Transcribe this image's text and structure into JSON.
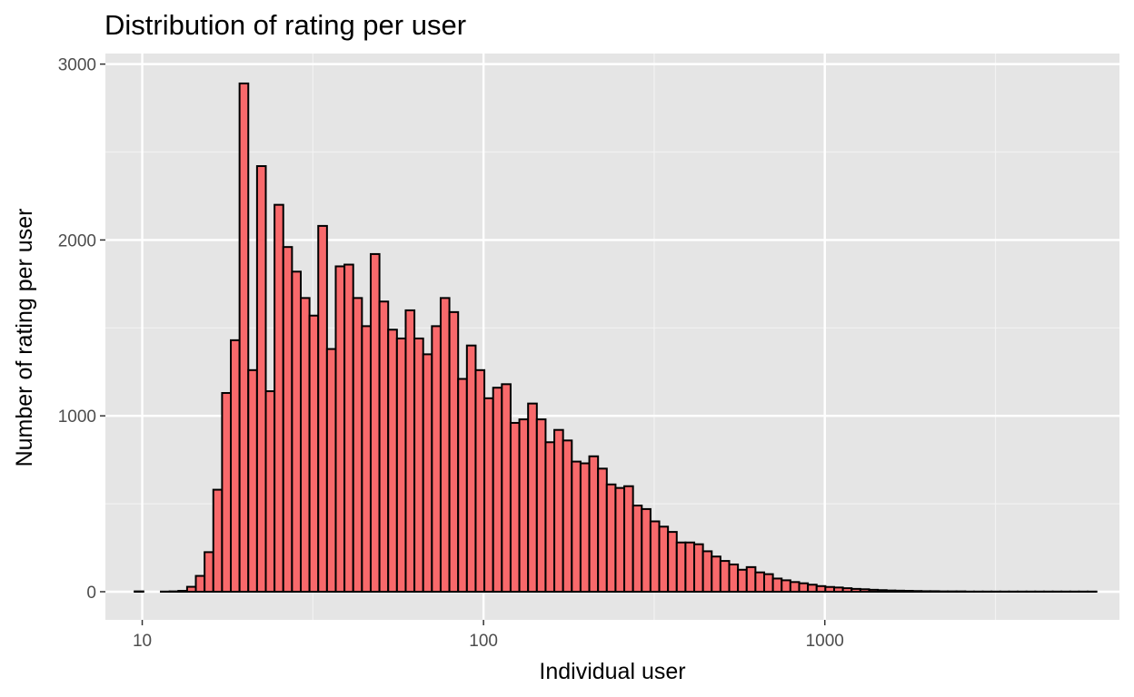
{
  "chart_data": {
    "type": "bar",
    "title": "Distribution of rating per user",
    "xlabel": "Individual user",
    "ylabel": "Number of rating per user",
    "x_scale": "log10",
    "xlim": [
      7.8,
      7300
    ],
    "ylim": [
      -160,
      3060
    ],
    "x_ticks": [
      {
        "value": 10,
        "label": "10"
      },
      {
        "value": 100,
        "label": "100"
      },
      {
        "value": 1000,
        "label": "1000"
      }
    ],
    "y_ticks": [
      {
        "value": 0,
        "label": "0"
      },
      {
        "value": 1000,
        "label": "1000"
      },
      {
        "value": 2000,
        "label": "2000"
      },
      {
        "value": 3000,
        "label": "3000"
      }
    ],
    "grid": true,
    "legend": "none",
    "bin_start": 9.5,
    "bin_end": 6250,
    "values": [
      2,
      0,
      0,
      1,
      2,
      5,
      28,
      90,
      225,
      580,
      1130,
      1430,
      2890,
      1260,
      2420,
      1140,
      2200,
      1960,
      1820,
      1670,
      1570,
      2080,
      1380,
      1850,
      1860,
      1670,
      1510,
      1920,
      1650,
      1490,
      1440,
      1600,
      1440,
      1350,
      1510,
      1670,
      1590,
      1210,
      1400,
      1260,
      1100,
      1160,
      1180,
      960,
      980,
      1070,
      980,
      850,
      920,
      860,
      740,
      730,
      770,
      700,
      610,
      590,
      600,
      490,
      470,
      400,
      370,
      340,
      280,
      280,
      270,
      230,
      200,
      175,
      155,
      125,
      140,
      110,
      100,
      75,
      65,
      55,
      48,
      40,
      32,
      27,
      24,
      20,
      16,
      14,
      11,
      9,
      7,
      6,
      5,
      4,
      3,
      3,
      2,
      2,
      2,
      1,
      1,
      1,
      1,
      1,
      1,
      1,
      1,
      1,
      1,
      1,
      1,
      1,
      1,
      1
    ],
    "colors": {
      "bar_fill": "#f8696b",
      "bar_stroke": "#000000",
      "panel_bg": "#e5e5e5",
      "grid_major": "#ffffff",
      "grid_minor": "#f2f2f2"
    }
  }
}
